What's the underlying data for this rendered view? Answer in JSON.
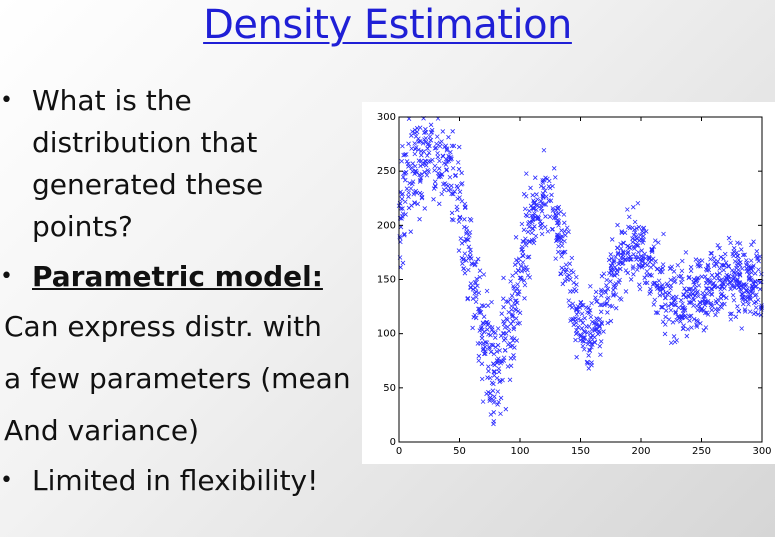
{
  "slide": {
    "title": "Density Estimation",
    "bullet1": [
      "What is the",
      "distribution that",
      "generated these",
      "points?"
    ],
    "bullet2": "Parametric model:",
    "plain_lines": [
      "Can express distr. with",
      "a few parameters (mean",
      "And variance)"
    ],
    "bullet3": "Limited in flexibility!"
  },
  "chart_data": {
    "type": "scatter",
    "title": "",
    "xlabel": "",
    "ylabel": "",
    "xlim": [
      0,
      300
    ],
    "ylim": [
      0,
      300
    ],
    "xticks": [
      "0",
      "50",
      "100",
      "150",
      "200",
      "250",
      "300"
    ],
    "yticks": [
      "0",
      "50",
      "100",
      "150",
      "200",
      "250",
      "300"
    ],
    "marker": "x",
    "color": "#2a2aff",
    "grid": false,
    "series": [
      {
        "x": [
          0,
          5,
          10,
          15,
          20,
          25,
          30,
          35,
          40,
          45,
          50,
          55,
          60,
          65,
          70,
          75,
          80,
          85,
          90,
          95,
          100,
          105,
          110,
          115,
          120,
          125,
          130,
          135,
          140,
          145,
          150,
          155,
          160,
          165,
          170,
          175,
          180,
          185,
          190,
          195,
          200,
          205,
          210,
          215,
          220,
          225,
          230,
          235,
          240,
          245,
          250,
          255,
          260,
          265,
          270,
          275,
          280,
          285,
          290,
          295,
          300
        ],
        "y": [
          205,
          230,
          245,
          256,
          264,
          268,
          269,
          264,
          253,
          235,
          211,
          182,
          152,
          122,
          97,
          79,
          71,
          77,
          96,
          124,
          155,
          184,
          207,
          221,
          225,
          219,
          203,
          180,
          153,
          127,
          108,
          99,
          101,
          112,
          128,
          146,
          162,
          174,
          180,
          180,
          175,
          167,
          157,
          148,
          141,
          136,
          133,
          133,
          134,
          137,
          141,
          145,
          149,
          152,
          154,
          154,
          152,
          149,
          146,
          143,
          141
        ]
      }
    ]
  }
}
